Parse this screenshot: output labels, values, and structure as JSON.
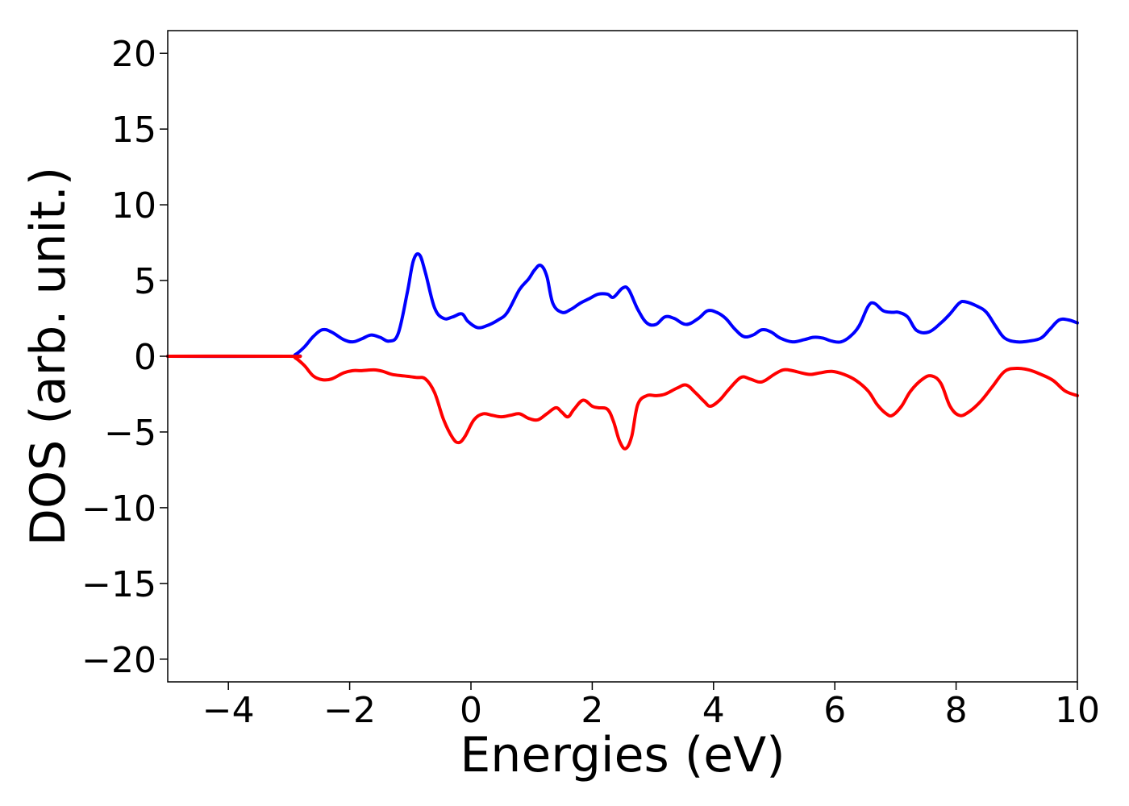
{
  "chart_data": {
    "type": "line",
    "title": "",
    "xlabel": "Energies (eV)",
    "ylabel": "DOS (arb. unit.)",
    "xlim": [
      -5,
      10
    ],
    "ylim": [
      -21.5,
      21.5
    ],
    "x_ticks": [
      -4,
      -2,
      0,
      2,
      4,
      6,
      8,
      10
    ],
    "x_tick_labels": [
      "−4",
      "−2",
      "0",
      "2",
      "4",
      "6",
      "8",
      "10"
    ],
    "y_ticks": [
      20,
      15,
      10,
      5,
      0,
      -5,
      -10,
      -15,
      -20
    ],
    "y_tick_labels": [
      "20",
      "15",
      "10",
      "5",
      "0",
      "−5",
      "−10",
      "−15",
      "−20"
    ],
    "grid": false,
    "series": [
      {
        "color": "#0000ff",
        "x": [
          -5.0,
          -3.0,
          -2.9,
          -2.75,
          -2.6,
          -2.45,
          -2.3,
          -2.1,
          -1.95,
          -1.8,
          -1.65,
          -1.5,
          -1.35,
          -1.2,
          -1.05,
          -0.95,
          -0.85,
          -0.75,
          -0.6,
          -0.45,
          -0.3,
          -0.15,
          -0.05,
          0.1,
          0.25,
          0.45,
          0.6,
          0.8,
          0.95,
          1.05,
          1.15,
          1.25,
          1.35,
          1.5,
          1.65,
          1.8,
          1.95,
          2.1,
          2.25,
          2.35,
          2.5,
          2.6,
          2.75,
          2.9,
          3.05,
          3.2,
          3.35,
          3.55,
          3.75,
          3.9,
          4.05,
          4.2,
          4.35,
          4.5,
          4.65,
          4.8,
          4.95,
          5.1,
          5.3,
          5.5,
          5.65,
          5.8,
          5.95,
          6.1,
          6.25,
          6.4,
          6.55,
          6.65,
          6.8,
          6.95,
          7.05,
          7.2,
          7.35,
          7.55,
          7.75,
          7.9,
          8.05,
          8.15,
          8.35,
          8.5,
          8.65,
          8.8,
          9.0,
          9.2,
          9.4,
          9.55,
          9.7,
          9.85,
          10.0
        ],
        "y": [
          0.0,
          0.0,
          0.1,
          0.6,
          1.3,
          1.75,
          1.6,
          1.1,
          0.95,
          1.15,
          1.4,
          1.25,
          1.0,
          1.5,
          4.2,
          6.3,
          6.7,
          5.5,
          3.2,
          2.5,
          2.6,
          2.8,
          2.3,
          1.9,
          2.0,
          2.4,
          2.9,
          4.4,
          5.1,
          5.7,
          6.0,
          5.3,
          3.5,
          2.9,
          3.1,
          3.5,
          3.8,
          4.1,
          4.1,
          3.9,
          4.5,
          4.4,
          3.1,
          2.2,
          2.1,
          2.6,
          2.5,
          2.1,
          2.5,
          3.0,
          2.9,
          2.5,
          1.8,
          1.3,
          1.4,
          1.75,
          1.6,
          1.2,
          0.95,
          1.1,
          1.25,
          1.2,
          1.0,
          0.95,
          1.3,
          2.0,
          3.3,
          3.5,
          3.0,
          2.9,
          2.9,
          2.6,
          1.7,
          1.6,
          2.2,
          2.8,
          3.5,
          3.6,
          3.3,
          2.9,
          2.0,
          1.2,
          0.95,
          1.0,
          1.2,
          1.8,
          2.4,
          2.4,
          2.2
        ]
      },
      {
        "color": "#ff0000",
        "x": [
          -5.0,
          -3.0,
          -2.9,
          -2.75,
          -2.6,
          -2.45,
          -2.3,
          -2.1,
          -1.95,
          -1.8,
          -1.6,
          -1.45,
          -1.3,
          -1.1,
          -0.9,
          -0.75,
          -0.6,
          -0.45,
          -0.3,
          -0.2,
          -0.1,
          0.05,
          0.2,
          0.35,
          0.5,
          0.65,
          0.8,
          0.95,
          1.1,
          1.25,
          1.4,
          1.5,
          1.6,
          1.7,
          1.85,
          2.0,
          2.1,
          2.25,
          2.35,
          2.45,
          2.55,
          2.65,
          2.75,
          2.9,
          3.05,
          3.2,
          3.4,
          3.55,
          3.7,
          3.85,
          3.95,
          4.1,
          4.25,
          4.45,
          4.6,
          4.75,
          4.85,
          5.0,
          5.15,
          5.3,
          5.45,
          5.6,
          5.75,
          5.95,
          6.15,
          6.35,
          6.55,
          6.7,
          6.85,
          6.95,
          7.1,
          7.25,
          7.45,
          7.6,
          7.75,
          7.9,
          8.05,
          8.2,
          8.4,
          8.6,
          8.8,
          9.0,
          9.2,
          9.4,
          9.6,
          9.8,
          10.0
        ],
        "y": [
          0.0,
          0.0,
          -0.1,
          -0.6,
          -1.3,
          -1.55,
          -1.5,
          -1.1,
          -0.95,
          -0.95,
          -0.9,
          -1.0,
          -1.2,
          -1.3,
          -1.4,
          -1.5,
          -2.4,
          -4.2,
          -5.4,
          -5.7,
          -5.3,
          -4.2,
          -3.8,
          -3.9,
          -4.0,
          -3.9,
          -3.8,
          -4.1,
          -4.2,
          -3.8,
          -3.4,
          -3.7,
          -4.0,
          -3.5,
          -2.9,
          -3.3,
          -3.4,
          -3.5,
          -4.3,
          -5.6,
          -6.1,
          -5.3,
          -3.2,
          -2.6,
          -2.6,
          -2.5,
          -2.1,
          -1.9,
          -2.4,
          -3.0,
          -3.3,
          -2.9,
          -2.2,
          -1.4,
          -1.5,
          -1.7,
          -1.6,
          -1.2,
          -0.9,
          -0.95,
          -1.1,
          -1.2,
          -1.1,
          -1.0,
          -1.2,
          -1.6,
          -2.3,
          -3.2,
          -3.8,
          -3.9,
          -3.3,
          -2.3,
          -1.5,
          -1.3,
          -1.8,
          -3.3,
          -3.9,
          -3.7,
          -3.0,
          -2.0,
          -1.0,
          -0.8,
          -0.9,
          -1.2,
          -1.6,
          -2.3,
          -2.6
        ]
      }
    ]
  }
}
